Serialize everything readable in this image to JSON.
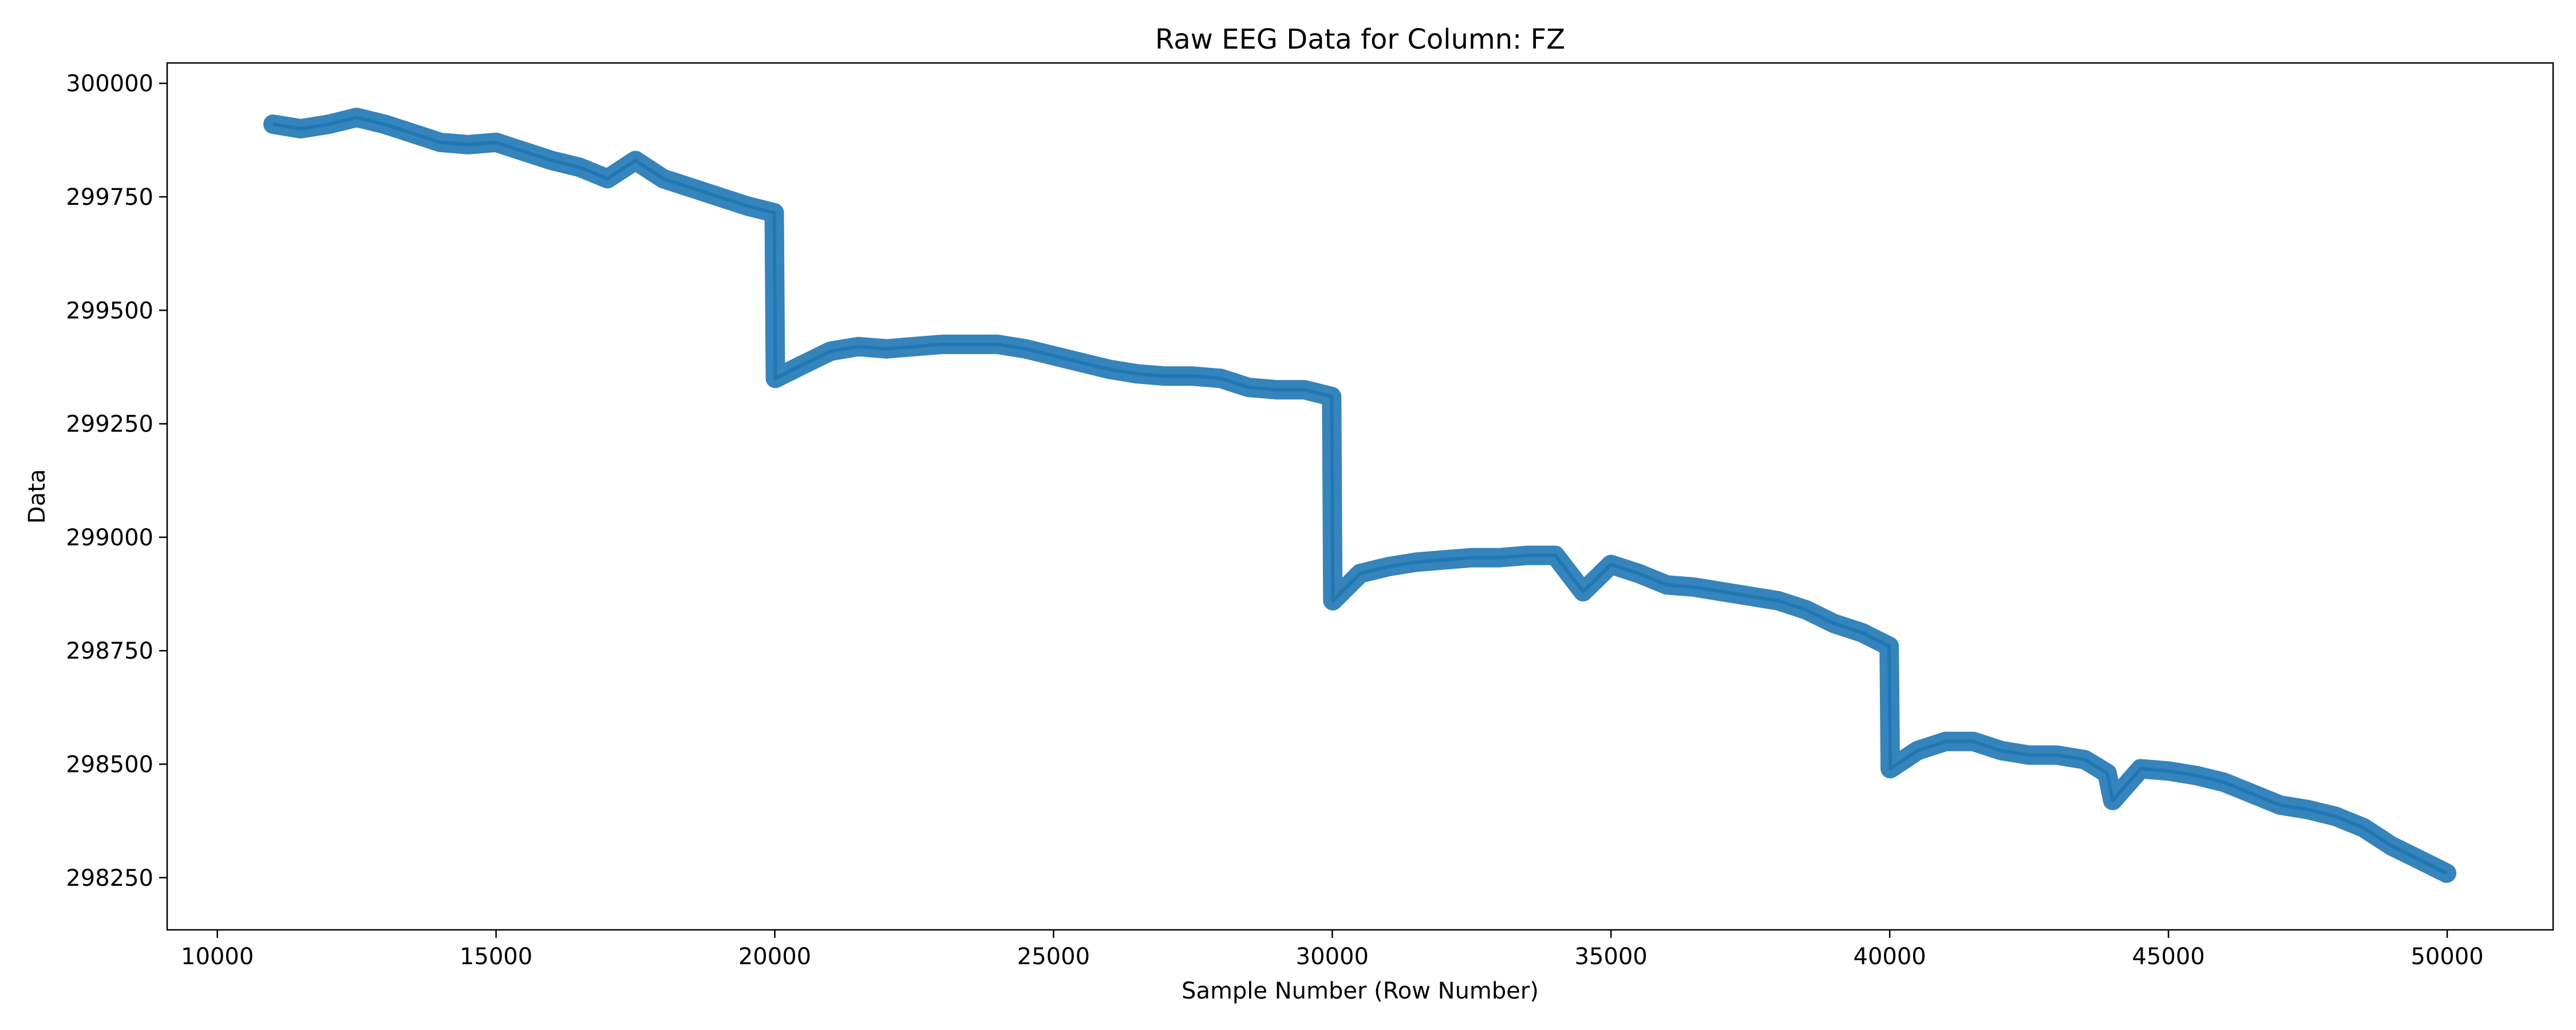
{
  "chart_data": {
    "type": "line",
    "title": "Raw EEG Data for Column: FZ",
    "xlabel": "Sample Number (Row Number)",
    "ylabel": "Data",
    "xlim": [
      9100,
      51900
    ],
    "ylim": [
      298135,
      300045
    ],
    "x_ticks": [
      10000,
      15000,
      20000,
      25000,
      30000,
      35000,
      40000,
      45000,
      50000
    ],
    "y_ticks": [
      298250,
      298500,
      298750,
      299000,
      299250,
      299500,
      299750,
      300000
    ],
    "grid": false,
    "series": [
      {
        "color": "#1f77b4",
        "x": [
          11000,
          11500,
          12000,
          12500,
          13000,
          13500,
          14000,
          14500,
          15000,
          15500,
          16000,
          16500,
          17000,
          17500,
          18000,
          18500,
          19000,
          19500,
          19990,
          20010,
          20500,
          21000,
          21500,
          22000,
          22500,
          23000,
          23500,
          24000,
          24500,
          25000,
          25500,
          26000,
          26500,
          27000,
          27500,
          28000,
          28500,
          29000,
          29500,
          29990,
          30010,
          30500,
          31000,
          31500,
          32000,
          32500,
          33000,
          33500,
          34000,
          34500,
          35000,
          35500,
          36000,
          36500,
          37000,
          37500,
          38000,
          38500,
          39000,
          39500,
          39990,
          40010,
          40500,
          41000,
          41500,
          42000,
          42500,
          43000,
          43500,
          43900,
          44000,
          44500,
          45000,
          45500,
          46000,
          46500,
          47000,
          47500,
          48000,
          48500,
          49000,
          49500,
          49990
        ],
        "y": [
          299910,
          299900,
          299910,
          299925,
          299910,
          299890,
          299870,
          299865,
          299870,
          299850,
          299830,
          299815,
          299790,
          299830,
          299790,
          299770,
          299750,
          299730,
          299715,
          299350,
          299380,
          299410,
          299420,
          299415,
          299420,
          299425,
          299425,
          299425,
          299415,
          299400,
          299385,
          299370,
          299360,
          299355,
          299355,
          299350,
          299330,
          299325,
          299325,
          299310,
          298860,
          298920,
          298935,
          298945,
          298950,
          298955,
          298955,
          298960,
          298960,
          298880,
          298940,
          298920,
          298895,
          298890,
          298880,
          298870,
          298860,
          298840,
          298810,
          298790,
          298760,
          298490,
          298530,
          298550,
          298550,
          298530,
          298520,
          298520,
          298510,
          298480,
          298420,
          298490,
          298485,
          298475,
          298460,
          298435,
          298410,
          298400,
          298385,
          298360,
          298320,
          298290,
          298260
        ]
      }
    ]
  }
}
